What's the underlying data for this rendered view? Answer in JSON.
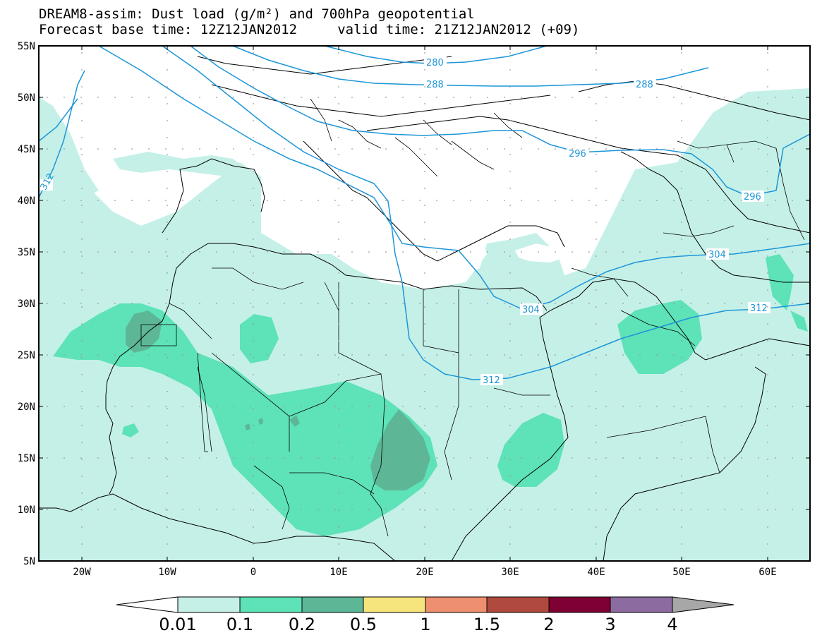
{
  "title": {
    "line1": "DREAM8-assim: Dust load (g/m²) and 700hPa geopotential",
    "line2": "Forecast base time: 12Z12JAN2012     valid time: 21Z12JAN2012 (+09)"
  },
  "axes": {
    "lat_labels": [
      "55N",
      "50N",
      "45N",
      "40N",
      "35N",
      "30N",
      "25N",
      "20N",
      "15N",
      "10N",
      "5N"
    ],
    "lon_labels": [
      "20W",
      "10W",
      "0",
      "10E",
      "20E",
      "30E",
      "40E",
      "50E",
      "60E"
    ]
  },
  "contours": {
    "color": "#1c96d8",
    "labels": [
      "280",
      "288",
      "288",
      "296",
      "296",
      "304",
      "304",
      "312",
      "312",
      "312"
    ]
  },
  "colorbar": {
    "thresholds": [
      "0.01",
      "0.1",
      "0.2",
      "0.5",
      "1",
      "1.5",
      "2",
      "3",
      "4"
    ],
    "colors": [
      "#ffffff",
      "#c5f0e8",
      "#5ee2b8",
      "#5db797",
      "#f5e57c",
      "#ee9070",
      "#b04a3e",
      "#7f0032",
      "#8b6ba0",
      "#a7a7a7"
    ]
  },
  "dust_colors": {
    "light": "#c5f0e8",
    "mid": "#5ee2b8",
    "dark": "#5db797",
    "darkest": "#6b8e7d"
  }
}
